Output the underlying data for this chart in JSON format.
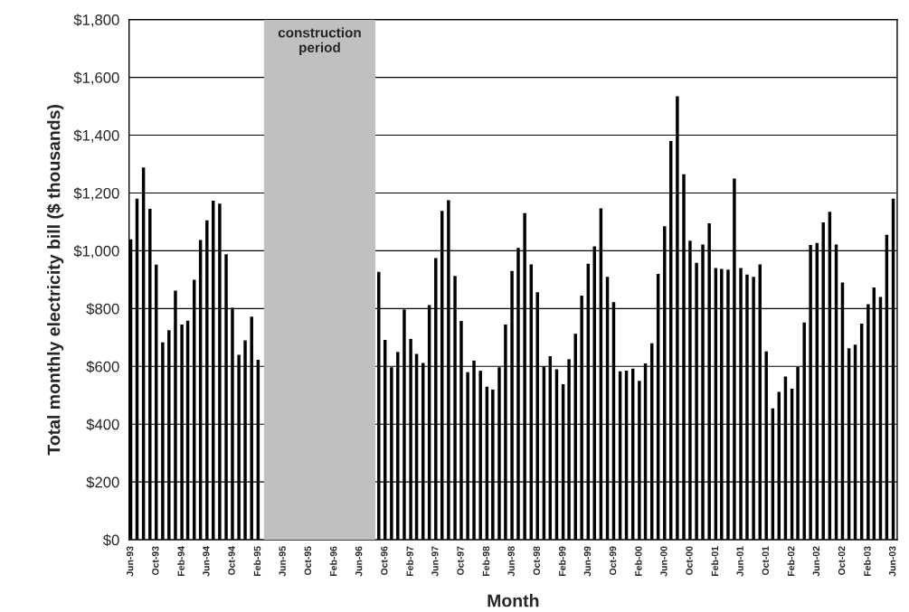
{
  "chart_data": {
    "type": "bar",
    "xlabel": "Month",
    "ylabel": "Total monthly electricity bill ($ thousands)",
    "x": [
      "1993-06",
      "1993-07",
      "1993-08",
      "1993-09",
      "1993-10",
      "1993-11",
      "1993-12",
      "1994-01",
      "1994-02",
      "1994-03",
      "1994-04",
      "1994-05",
      "1994-06",
      "1994-07",
      "1994-08",
      "1994-09",
      "1994-10",
      "1994-11",
      "1994-12",
      "1995-01",
      "1995-02",
      "1995-03",
      "1995-04",
      "1995-05",
      "1995-06",
      "1995-07",
      "1995-08",
      "1995-09",
      "1995-10",
      "1995-11",
      "1995-12",
      "1996-01",
      "1996-02",
      "1996-03",
      "1996-04",
      "1996-05",
      "1996-06",
      "1996-07",
      "1996-08",
      "1996-09",
      "1996-10",
      "1996-11",
      "1996-12",
      "1997-01",
      "1997-02",
      "1997-03",
      "1997-04",
      "1997-05",
      "1997-06",
      "1997-07",
      "1997-08",
      "1997-09",
      "1997-10",
      "1997-11",
      "1997-12",
      "1998-01",
      "1998-02",
      "1998-03",
      "1998-04",
      "1998-05",
      "1998-06",
      "1998-07",
      "1998-08",
      "1998-09",
      "1998-10",
      "1998-11",
      "1998-12",
      "1999-01",
      "1999-02",
      "1999-03",
      "1999-04",
      "1999-05",
      "1999-06",
      "1999-07",
      "1999-08",
      "1999-09",
      "1999-10",
      "1999-11",
      "1999-12",
      "2000-01",
      "2000-02",
      "2000-03",
      "2000-04",
      "2000-05",
      "2000-06",
      "2000-07",
      "2000-08",
      "2000-09",
      "2000-10",
      "2000-11",
      "2000-12",
      "2001-01",
      "2001-02",
      "2001-03",
      "2001-04",
      "2001-05",
      "2001-06",
      "2001-07",
      "2001-08",
      "2001-09",
      "2001-10",
      "2001-11",
      "2001-12",
      "2002-01",
      "2002-02",
      "2002-03",
      "2002-04",
      "2002-05",
      "2002-06",
      "2002-07",
      "2002-08",
      "2002-09",
      "2002-10",
      "2002-11",
      "2002-12",
      "2003-01",
      "2003-02",
      "2003-03",
      "2003-04",
      "2003-05",
      "2003-06"
    ],
    "series": [
      {
        "color": "#000000",
        "values": [
          1040,
          1180,
          1288,
          1145,
          952,
          683,
          725,
          862,
          745,
          758,
          900,
          1037,
          1105,
          1173,
          1163,
          988,
          803,
          640,
          690,
          772,
          623,
          null,
          null,
          null,
          null,
          null,
          null,
          null,
          null,
          null,
          null,
          null,
          null,
          null,
          null,
          null,
          null,
          null,
          null,
          927,
          692,
          597,
          650,
          797,
          695,
          643,
          612,
          812,
          975,
          1138,
          1175,
          913,
          757,
          580,
          620,
          585,
          530,
          520,
          597,
          745,
          930,
          1010,
          1130,
          953,
          857,
          600,
          635,
          590,
          538,
          625,
          713,
          845,
          955,
          1015,
          1147,
          910,
          822,
          583,
          585,
          592,
          550,
          610,
          680,
          920,
          1085,
          1380,
          1535,
          1265,
          1035,
          958,
          1022,
          1095,
          940,
          937,
          935,
          1250,
          940,
          918,
          910,
          953,
          652,
          455,
          512,
          565,
          523,
          598,
          752,
          1020,
          1027,
          1098,
          1135,
          1022,
          890,
          663,
          675,
          748,
          815,
          873,
          840,
          1055,
          1180
        ]
      }
    ],
    "xlim": [
      "1993-05-24",
      "2003-06-20"
    ],
    "xticks": [
      {
        "value": "1993-06",
        "label": "Jun-93"
      },
      {
        "value": "1993-10",
        "label": "Oct-93"
      },
      {
        "value": "1994-02",
        "label": "Feb-94"
      },
      {
        "value": "1994-06",
        "label": "Jun-94"
      },
      {
        "value": "1994-10",
        "label": "Oct-94"
      },
      {
        "value": "1995-02",
        "label": "Feb-95"
      },
      {
        "value": "1995-06",
        "label": "Jun-95"
      },
      {
        "value": "1995-10",
        "label": "Oct-95"
      },
      {
        "value": "1996-02",
        "label": "Feb-96"
      },
      {
        "value": "1996-06",
        "label": "Jun-96"
      },
      {
        "value": "1996-10",
        "label": "Oct-96"
      },
      {
        "value": "1997-02",
        "label": "Feb-97"
      },
      {
        "value": "1997-06",
        "label": "Jun-97"
      },
      {
        "value": "1997-10",
        "label": "Oct-97"
      },
      {
        "value": "1998-02",
        "label": "Feb-98"
      },
      {
        "value": "1998-06",
        "label": "Jun-98"
      },
      {
        "value": "1998-10",
        "label": "Oct-98"
      },
      {
        "value": "1999-02",
        "label": "Feb-99"
      },
      {
        "value": "1999-06",
        "label": "Jun-99"
      },
      {
        "value": "1999-10",
        "label": "Oct-99"
      },
      {
        "value": "2000-02",
        "label": "Feb-00"
      },
      {
        "value": "2000-06",
        "label": "Jun-00"
      },
      {
        "value": "2000-10",
        "label": "Oct-00"
      },
      {
        "value": "2001-02",
        "label": "Feb-01"
      },
      {
        "value": "2001-06",
        "label": "Jun-01"
      },
      {
        "value": "2001-10",
        "label": "Oct-01"
      },
      {
        "value": "2002-02",
        "label": "Feb-02"
      },
      {
        "value": "2002-06",
        "label": "Jun-02"
      },
      {
        "value": "2002-10",
        "label": "Oct-02"
      },
      {
        "value": "2003-02",
        "label": "Feb-03"
      },
      {
        "value": "2003-06",
        "label": "Jun-03"
      }
    ],
    "ylim": [
      0,
      1800
    ],
    "yticks": [
      {
        "value": 0,
        "label": "$0"
      },
      {
        "value": 200,
        "label": "$200"
      },
      {
        "value": 400,
        "label": "$400"
      },
      {
        "value": 600,
        "label": "$600"
      },
      {
        "value": 800,
        "label": "$800"
      },
      {
        "value": 1000,
        "label": "$1,000"
      },
      {
        "value": 1200,
        "label": "$1,200"
      },
      {
        "value": 1400,
        "label": "$1,400"
      },
      {
        "value": 1600,
        "label": "$1,600"
      },
      {
        "value": 1800,
        "label": "$1,800"
      }
    ],
    "bands": [
      {
        "axis": "x",
        "from": "1995-03-01",
        "to": "1996-08-16",
        "label": "construction\nperiod",
        "color": "#c0c0c0"
      }
    ],
    "grid": "y"
  }
}
